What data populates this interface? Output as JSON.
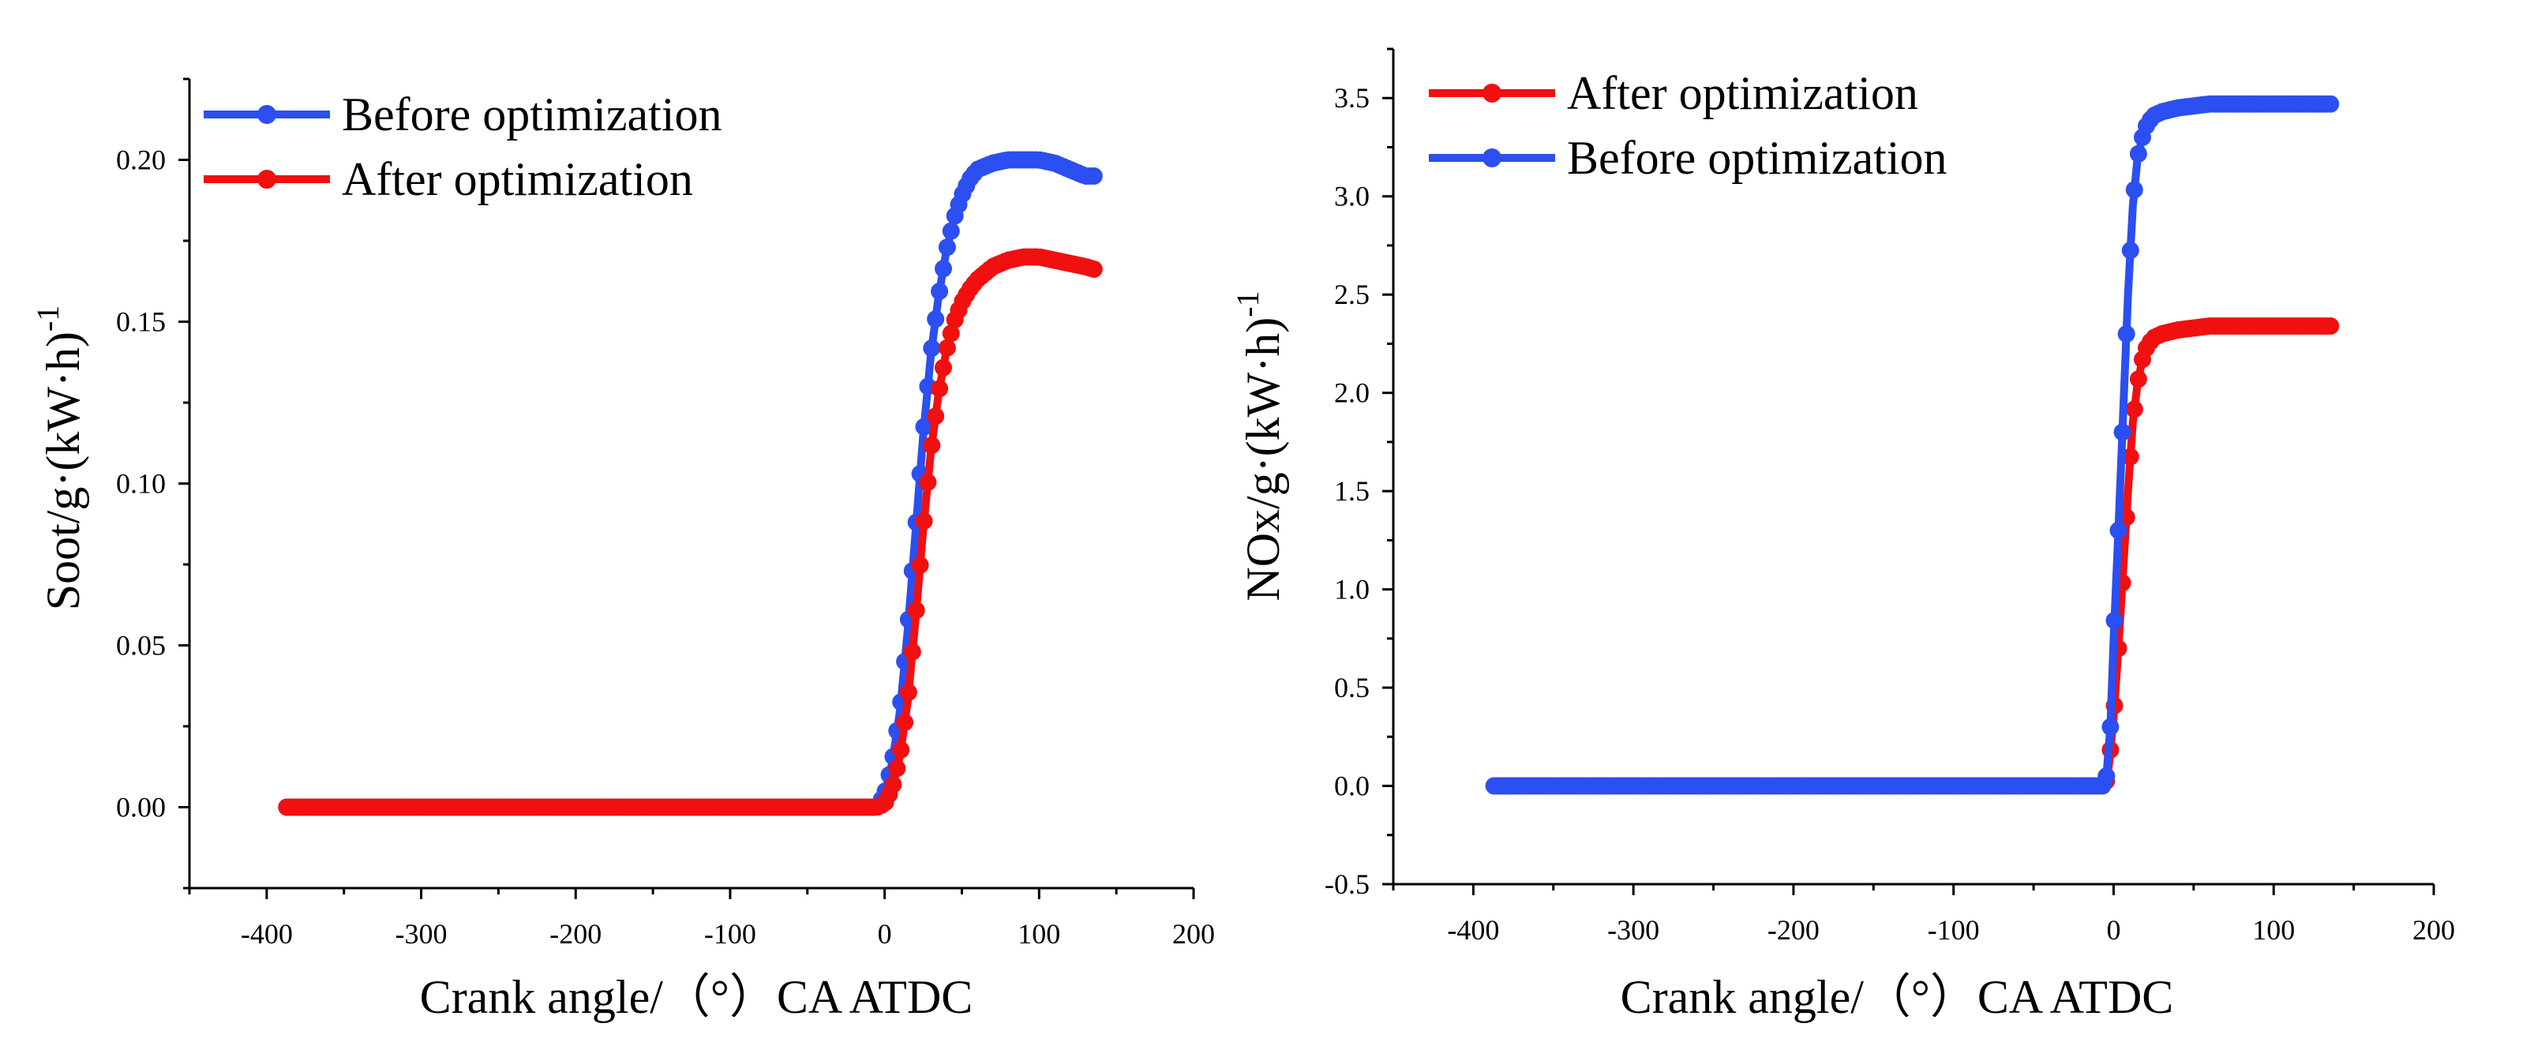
{
  "chart_data": [
    {
      "type": "line",
      "title": "",
      "xlabel": "Crank angle/（°）CA ATDC",
      "ylabel_main": "Soot/g·(kW·h)",
      "ylabel_sup": "-1",
      "xlim": [
        -450,
        200
      ],
      "ylim": [
        -0.025,
        0.225
      ],
      "xticks": [
        -400,
        -300,
        -200,
        -100,
        0,
        100,
        200
      ],
      "yticks": [
        0.0,
        0.05,
        0.1,
        0.15,
        0.2
      ],
      "ytick_labels": [
        "0.00",
        "0.05",
        "0.10",
        "0.15",
        "0.20"
      ],
      "legend_position": "top-left",
      "series": [
        {
          "name": "Before optimization",
          "color": "#2b4ff0",
          "points": [
            [
              -387,
              0
            ],
            [
              -5,
              0
            ],
            [
              0,
              0.004
            ],
            [
              5,
              0.014
            ],
            [
              10,
              0.03
            ],
            [
              15,
              0.055
            ],
            [
              20,
              0.085
            ],
            [
              25,
              0.115
            ],
            [
              30,
              0.14
            ],
            [
              35,
              0.158
            ],
            [
              40,
              0.172
            ],
            [
              45,
              0.182
            ],
            [
              50,
              0.189
            ],
            [
              55,
              0.194
            ],
            [
              60,
              0.197
            ],
            [
              70,
              0.199
            ],
            [
              80,
              0.2
            ],
            [
              90,
              0.2
            ],
            [
              100,
              0.2
            ],
            [
              110,
              0.199
            ],
            [
              120,
              0.197
            ],
            [
              130,
              0.195
            ],
            [
              137,
              0.195
            ]
          ]
        },
        {
          "name": "After optimization",
          "color": "#f01010",
          "points": [
            [
              -387,
              0
            ],
            [
              -5,
              0
            ],
            [
              0,
              0.001
            ],
            [
              5,
              0.006
            ],
            [
              10,
              0.016
            ],
            [
              15,
              0.033
            ],
            [
              20,
              0.058
            ],
            [
              25,
              0.086
            ],
            [
              30,
              0.11
            ],
            [
              35,
              0.128
            ],
            [
              40,
              0.141
            ],
            [
              45,
              0.15
            ],
            [
              50,
              0.156
            ],
            [
              55,
              0.16
            ],
            [
              60,
              0.163
            ],
            [
              70,
              0.167
            ],
            [
              80,
              0.169
            ],
            [
              90,
              0.17
            ],
            [
              100,
              0.17
            ],
            [
              110,
              0.169
            ],
            [
              120,
              0.168
            ],
            [
              130,
              0.167
            ],
            [
              137,
              0.166
            ]
          ]
        }
      ]
    },
    {
      "type": "line",
      "title": "",
      "xlabel": "Crank angle/（°）CA ATDC",
      "ylabel_main": "NOx/g·(kW·h)",
      "ylabel_sup": "-1",
      "xlim": [
        -450,
        200
      ],
      "ylim": [
        -0.5,
        3.75
      ],
      "xticks": [
        -400,
        -300,
        -200,
        -100,
        0,
        100,
        200
      ],
      "yticks": [
        -0.5,
        0.0,
        0.5,
        1.0,
        1.5,
        2.0,
        2.5,
        3.0,
        3.5
      ],
      "ytick_labels": [
        "-0.5",
        "0.0",
        "0.5",
        "1.0",
        "1.5",
        "2.0",
        "2.5",
        "3.0",
        "3.5"
      ],
      "legend_position": "top-left",
      "series": [
        {
          "name": "After optimization",
          "color": "#f01010",
          "points": [
            [
              -387,
              0
            ],
            [
              -5,
              0
            ],
            [
              -3,
              0.1
            ],
            [
              0,
              0.35
            ],
            [
              3,
              0.7
            ],
            [
              6,
              1.1
            ],
            [
              9,
              1.5
            ],
            [
              12,
              1.85
            ],
            [
              15,
              2.05
            ],
            [
              18,
              2.17
            ],
            [
              21,
              2.24
            ],
            [
              25,
              2.28
            ],
            [
              30,
              2.3
            ],
            [
              40,
              2.32
            ],
            [
              50,
              2.33
            ],
            [
              60,
              2.34
            ],
            [
              80,
              2.34
            ],
            [
              100,
              2.34
            ],
            [
              120,
              2.34
            ],
            [
              137,
              2.34
            ]
          ]
        },
        {
          "name": "Before optimization",
          "color": "#2b4ff0",
          "points": [
            [
              -387,
              0
            ],
            [
              -5,
              0
            ],
            [
              -2,
              0.3
            ],
            [
              0,
              0.75
            ],
            [
              3,
              1.3
            ],
            [
              6,
              1.9
            ],
            [
              9,
              2.5
            ],
            [
              12,
              2.95
            ],
            [
              15,
              3.2
            ],
            [
              18,
              3.3
            ],
            [
              21,
              3.37
            ],
            [
              25,
              3.41
            ],
            [
              30,
              3.43
            ],
            [
              40,
              3.45
            ],
            [
              50,
              3.46
            ],
            [
              60,
              3.47
            ],
            [
              80,
              3.47
            ],
            [
              100,
              3.47
            ],
            [
              120,
              3.47
            ],
            [
              137,
              3.47
            ]
          ]
        }
      ]
    }
  ]
}
